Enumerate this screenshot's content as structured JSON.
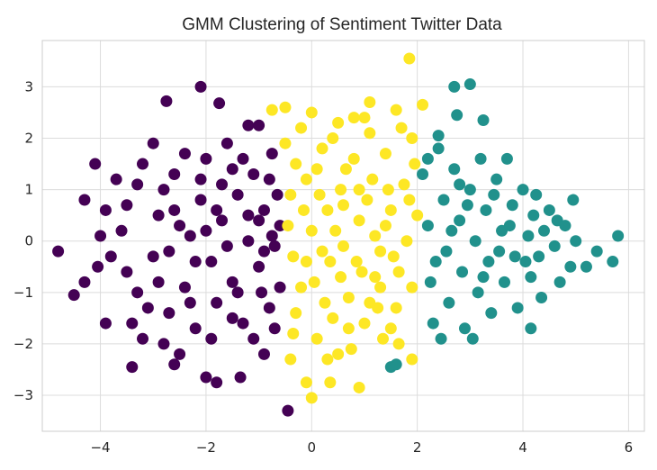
{
  "chart_data": {
    "type": "scatter",
    "title": "GMM Clustering of Sentiment Twitter Data",
    "xlabel": "",
    "ylabel": "",
    "xlim": [
      -5.1,
      6.3
    ],
    "ylim": [
      -3.7,
      3.9
    ],
    "xticks": [
      -4,
      -2,
      0,
      2,
      4,
      6
    ],
    "xtick_labels": [
      "−4",
      "−2",
      "0",
      "2",
      "4",
      "6"
    ],
    "yticks": [
      -3,
      -2,
      -1,
      0,
      1,
      2,
      3
    ],
    "ytick_labels": [
      "−3",
      "−2",
      "−1",
      "0",
      "1",
      "2",
      "3"
    ],
    "grid": true,
    "legend": "none",
    "colors": {
      "cluster_0": "#440154",
      "cluster_1": "#fde725",
      "cluster_2": "#21918c",
      "grid": "#dcdcdc",
      "frame": "#cccccc"
    },
    "series": [
      {
        "cluster": 0,
        "color": "#440154",
        "points": [
          [
            -4.8,
            -0.2
          ],
          [
            -4.5,
            -1.05
          ],
          [
            -4.3,
            0.8
          ],
          [
            -4.3,
            -0.8
          ],
          [
            -4.1,
            1.5
          ],
          [
            -4.05,
            -0.5
          ],
          [
            -3.9,
            0.6
          ],
          [
            -3.9,
            -1.6
          ],
          [
            -3.4,
            -2.45
          ],
          [
            -3.2,
            1.5
          ],
          [
            -3.0,
            1.9
          ],
          [
            -2.75,
            2.72
          ],
          [
            -2.6,
            -2.4
          ],
          [
            -2.5,
            -2.2
          ],
          [
            -2.1,
            3.0
          ],
          [
            -2.0,
            -2.65
          ],
          [
            -1.8,
            -2.75
          ],
          [
            -1.75,
            2.68
          ],
          [
            -1.35,
            -2.65
          ],
          [
            -1.2,
            2.25
          ],
          [
            -1.0,
            2.25
          ],
          [
            -0.9,
            -2.2
          ],
          [
            -0.45,
            -3.3
          ],
          [
            -3.6,
            0.2
          ],
          [
            -3.5,
            -0.6
          ],
          [
            -3.3,
            1.1
          ],
          [
            -3.1,
            -1.3
          ],
          [
            -2.9,
            0.5
          ],
          [
            -2.7,
            -0.2
          ],
          [
            -2.6,
            1.3
          ],
          [
            -2.4,
            -0.9
          ],
          [
            -2.3,
            0.1
          ],
          [
            -2.2,
            -1.7
          ],
          [
            -2.1,
            0.8
          ],
          [
            -2.0,
            1.6
          ],
          [
            -1.9,
            -0.4
          ],
          [
            -1.8,
            -1.2
          ],
          [
            -1.7,
            0.4
          ],
          [
            -1.6,
            1.9
          ],
          [
            -1.5,
            -0.8
          ],
          [
            -1.4,
            0.9
          ],
          [
            -1.3,
            -1.6
          ],
          [
            -1.2,
            0.0
          ],
          [
            -1.1,
            1.3
          ],
          [
            -1.0,
            -0.5
          ],
          [
            -0.9,
            0.6
          ],
          [
            -0.8,
            -1.3
          ],
          [
            -0.75,
            1.7
          ],
          [
            -0.7,
            -0.1
          ],
          [
            -0.65,
            0.9
          ],
          [
            -0.6,
            -0.9
          ],
          [
            -3.8,
            -0.3
          ],
          [
            -3.7,
            1.2
          ],
          [
            -3.3,
            -1.0
          ],
          [
            -3.0,
            -0.3
          ],
          [
            -2.8,
            1.0
          ],
          [
            -2.7,
            -1.4
          ],
          [
            -2.5,
            0.3
          ],
          [
            -2.4,
            1.7
          ],
          [
            -2.2,
            -0.4
          ],
          [
            -2.0,
            0.2
          ],
          [
            -1.9,
            -1.9
          ],
          [
            -1.7,
            1.1
          ],
          [
            -1.6,
            -0.1
          ],
          [
            -1.4,
            -1.0
          ],
          [
            -1.3,
            1.6
          ],
          [
            -1.1,
            -1.9
          ],
          [
            -1.0,
            0.4
          ],
          [
            -0.9,
            -0.2
          ],
          [
            -0.8,
            1.2
          ],
          [
            -0.7,
            -1.7
          ],
          [
            -0.6,
            0.3
          ],
          [
            -4.0,
            0.1
          ],
          [
            -3.5,
            0.7
          ],
          [
            -3.2,
            -1.9
          ],
          [
            -2.9,
            -0.8
          ],
          [
            -2.6,
            0.6
          ],
          [
            -2.3,
            -1.2
          ],
          [
            -2.1,
            1.2
          ],
          [
            -1.8,
            0.6
          ],
          [
            -1.5,
            -1.5
          ],
          [
            -1.2,
            0.5
          ],
          [
            -0.95,
            -1.0
          ],
          [
            -0.75,
            0.1
          ],
          [
            -3.4,
            -1.6
          ],
          [
            -1.5,
            1.4
          ],
          [
            -2.8,
            -2.0
          ]
        ]
      },
      {
        "cluster": 1,
        "color": "#fde725",
        "points": [
          [
            1.85,
            3.55
          ],
          [
            -0.75,
            2.55
          ],
          [
            -0.5,
            2.6
          ],
          [
            1.1,
            2.7
          ],
          [
            1.6,
            2.55
          ],
          [
            2.1,
            2.65
          ],
          [
            -0.4,
            -2.3
          ],
          [
            -0.1,
            -2.75
          ],
          [
            0.0,
            -3.05
          ],
          [
            0.35,
            -2.75
          ],
          [
            1.9,
            -2.3
          ],
          [
            0.9,
            -2.85
          ],
          [
            0.5,
            -2.2
          ],
          [
            1.65,
            -2.0
          ],
          [
            -0.5,
            1.9
          ],
          [
            -0.4,
            0.9
          ],
          [
            -0.35,
            -0.3
          ],
          [
            -0.3,
            -1.4
          ],
          [
            -0.2,
            2.2
          ],
          [
            -0.1,
            1.2
          ],
          [
            0.0,
            0.2
          ],
          [
            0.05,
            -0.8
          ],
          [
            0.1,
            -1.9
          ],
          [
            0.2,
            1.8
          ],
          [
            0.3,
            0.6
          ],
          [
            0.35,
            -0.4
          ],
          [
            0.4,
            -1.5
          ],
          [
            0.5,
            2.3
          ],
          [
            0.55,
            1.0
          ],
          [
            0.6,
            -0.1
          ],
          [
            0.7,
            -1.1
          ],
          [
            0.75,
            -2.1
          ],
          [
            0.8,
            1.6
          ],
          [
            0.9,
            0.4
          ],
          [
            0.95,
            -0.6
          ],
          [
            1.0,
            -1.6
          ],
          [
            1.1,
            2.1
          ],
          [
            1.15,
            1.2
          ],
          [
            1.2,
            0.1
          ],
          [
            1.3,
            -0.9
          ],
          [
            1.35,
            -1.9
          ],
          [
            1.4,
            1.7
          ],
          [
            1.5,
            0.6
          ],
          [
            1.55,
            -0.3
          ],
          [
            1.6,
            -1.3
          ],
          [
            1.7,
            2.2
          ],
          [
            1.75,
            1.1
          ],
          [
            1.8,
            0.0
          ],
          [
            1.9,
            -0.9
          ],
          [
            1.95,
            1.5
          ],
          [
            2.0,
            0.5
          ],
          [
            -0.45,
            0.3
          ],
          [
            -0.3,
            1.5
          ],
          [
            -0.2,
            -0.9
          ],
          [
            0.0,
            2.5
          ],
          [
            0.15,
            0.9
          ],
          [
            0.25,
            -1.2
          ],
          [
            0.45,
            0.2
          ],
          [
            0.65,
            1.4
          ],
          [
            0.85,
            -0.4
          ],
          [
            1.05,
            0.8
          ],
          [
            1.25,
            -1.3
          ],
          [
            1.45,
            1.0
          ],
          [
            1.65,
            -0.6
          ],
          [
            1.85,
            0.8
          ],
          [
            0.4,
            2.0
          ],
          [
            0.7,
            -1.7
          ],
          [
            1.0,
            2.4
          ],
          [
            1.3,
            -0.2
          ],
          [
            -0.15,
            0.6
          ],
          [
            0.2,
            -0.2
          ],
          [
            0.55,
            -0.7
          ],
          [
            0.9,
            1.0
          ],
          [
            1.2,
            -0.7
          ],
          [
            1.5,
            -1.7
          ],
          [
            -0.35,
            -1.8
          ],
          [
            0.1,
            1.4
          ],
          [
            0.6,
            0.7
          ],
          [
            1.4,
            0.3
          ],
          [
            0.3,
            -2.3
          ],
          [
            0.8,
            2.4
          ],
          [
            1.9,
            2.0
          ],
          [
            -0.1,
            -0.4
          ],
          [
            1.1,
            -1.2
          ]
        ]
      },
      {
        "cluster": 2,
        "color": "#21918c",
        "points": [
          [
            2.7,
            3.0
          ],
          [
            3.0,
            3.05
          ],
          [
            2.75,
            2.45
          ],
          [
            3.25,
            2.35
          ],
          [
            2.4,
            2.05
          ],
          [
            1.5,
            -2.45
          ],
          [
            1.6,
            -2.4
          ],
          [
            4.15,
            -1.7
          ],
          [
            5.8,
            0.1
          ],
          [
            5.7,
            -0.4
          ],
          [
            5.2,
            -0.5
          ],
          [
            4.95,
            0.8
          ],
          [
            5.4,
            -0.2
          ],
          [
            2.1,
            1.3
          ],
          [
            2.2,
            0.3
          ],
          [
            2.25,
            -0.8
          ],
          [
            2.3,
            -1.6
          ],
          [
            2.4,
            1.8
          ],
          [
            2.5,
            0.8
          ],
          [
            2.55,
            -0.2
          ],
          [
            2.6,
            -1.2
          ],
          [
            2.7,
            1.4
          ],
          [
            2.8,
            0.4
          ],
          [
            2.85,
            -0.6
          ],
          [
            2.9,
            -1.7
          ],
          [
            3.0,
            1.0
          ],
          [
            3.1,
            0.0
          ],
          [
            3.15,
            -1.0
          ],
          [
            3.2,
            1.6
          ],
          [
            3.3,
            0.6
          ],
          [
            3.35,
            -0.4
          ],
          [
            3.4,
            -1.4
          ],
          [
            3.5,
            1.2
          ],
          [
            3.6,
            0.2
          ],
          [
            3.65,
            -0.8
          ],
          [
            3.7,
            1.6
          ],
          [
            3.8,
            0.7
          ],
          [
            3.85,
            -0.3
          ],
          [
            3.9,
            -1.3
          ],
          [
            4.0,
            1.0
          ],
          [
            4.1,
            0.1
          ],
          [
            4.15,
            -0.7
          ],
          [
            4.2,
            0.5
          ],
          [
            4.3,
            -0.3
          ],
          [
            4.35,
            -1.1
          ],
          [
            4.5,
            0.6
          ],
          [
            4.6,
            -0.1
          ],
          [
            4.7,
            -0.8
          ],
          [
            4.8,
            0.3
          ],
          [
            4.9,
            -0.5
          ],
          [
            5.0,
            0.0
          ],
          [
            2.35,
            -0.4
          ],
          [
            2.65,
            0.2
          ],
          [
            2.95,
            0.7
          ],
          [
            3.25,
            -0.7
          ],
          [
            3.55,
            -0.2
          ],
          [
            3.75,
            0.3
          ],
          [
            4.05,
            -0.4
          ],
          [
            4.4,
            0.2
          ],
          [
            2.45,
            -1.9
          ],
          [
            3.05,
            -1.9
          ],
          [
            2.2,
            1.6
          ],
          [
            2.8,
            1.1
          ],
          [
            3.45,
            0.9
          ],
          [
            4.25,
            0.9
          ],
          [
            4.65,
            0.4
          ]
        ]
      }
    ]
  }
}
